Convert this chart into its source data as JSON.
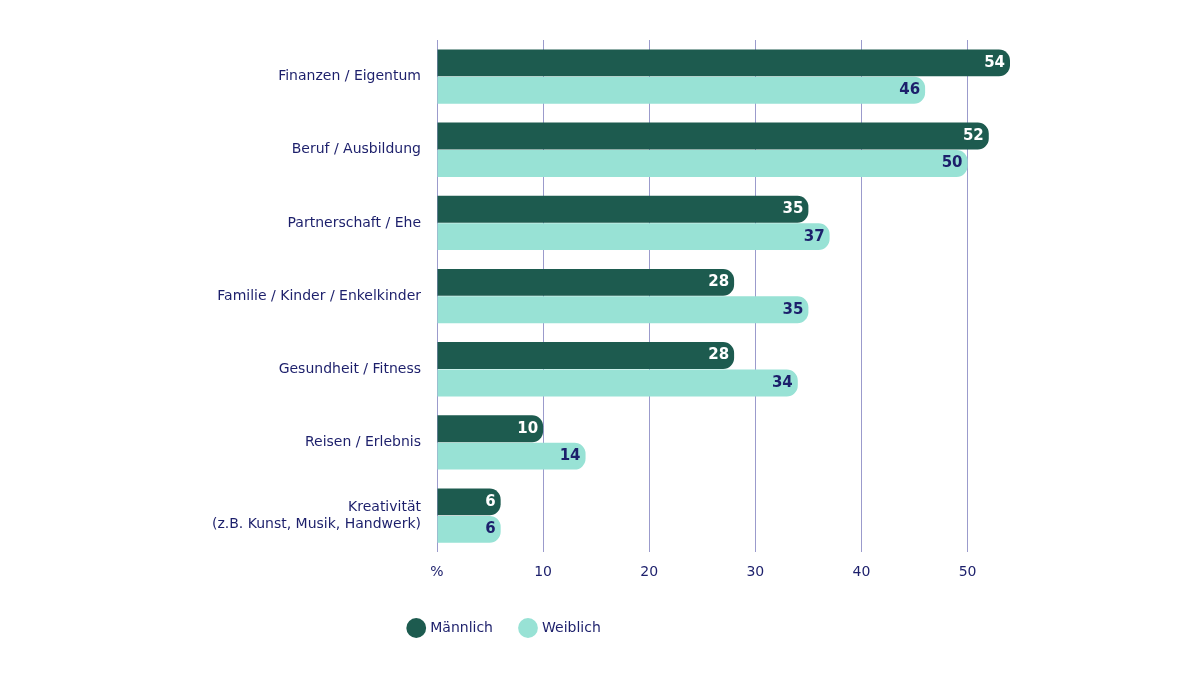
{
  "chart_data": {
    "type": "bar",
    "orientation": "horizontal",
    "categories": [
      "Finanzen / Eigentum",
      "Beruf / Ausbildung",
      "Partnerschaft / Ehe",
      "Familie / Kinder / Enkelkinder",
      "Gesundheit / Fitness",
      "Reisen / Erlebnis",
      "Kreativität\n(z.B. Kunst, Musik, Handwerk)"
    ],
    "series": [
      {
        "name": "Männlich",
        "color": "#1d5b4f",
        "values": [
          54,
          52,
          35,
          28,
          28,
          10,
          6
        ]
      },
      {
        "name": "Weiblich",
        "color": "#98e2d5",
        "values": [
          46,
          50,
          37,
          35,
          34,
          14,
          6
        ]
      }
    ],
    "xlim": [
      0,
      54
    ],
    "xticks": [
      {
        "value": 0,
        "label": "%"
      },
      10,
      20,
      30,
      40,
      50
    ],
    "grid": "x",
    "legend": "bottom",
    "data_labels": true
  }
}
